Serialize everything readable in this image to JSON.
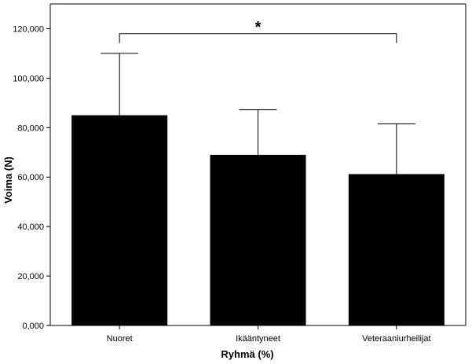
{
  "chart_data": {
    "type": "bar",
    "title": "",
    "xlabel": "Ryhmä (%)",
    "ylabel": "Voima (N)",
    "categories": [
      "Nuoret",
      "Ikääntyneet",
      "Veteraaniurheilijat"
    ],
    "values": [
      85,
      69,
      61.2
    ],
    "error_upper": [
      110,
      87.2,
      81.5
    ],
    "ylim": [
      0,
      130
    ],
    "yticks": [
      0,
      20,
      40,
      60,
      80,
      100,
      120
    ],
    "ytick_labels": [
      "0,000",
      "20,000",
      "40,000",
      "60,000",
      "80,000",
      "100,000",
      "120,000"
    ],
    "bar_color": "#000000",
    "grid": false,
    "legend": "none",
    "significance": {
      "from": 0,
      "to": 2,
      "label": "*",
      "level": 118
    }
  }
}
